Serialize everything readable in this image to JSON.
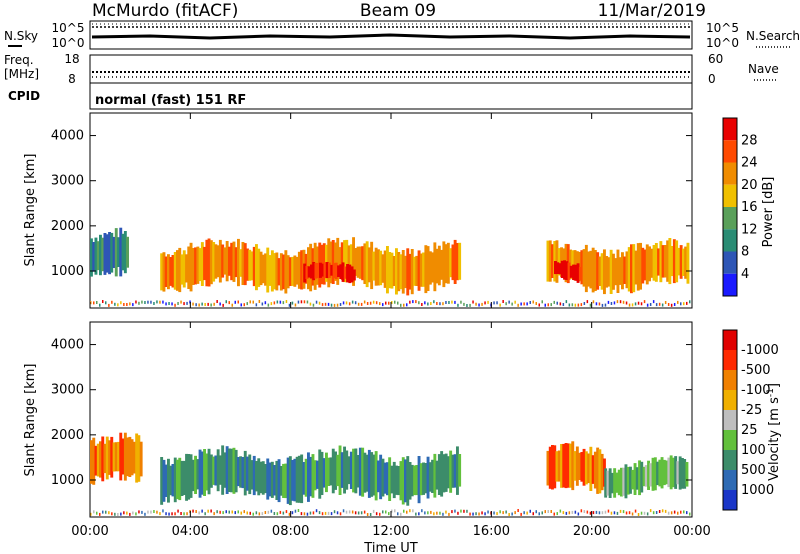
{
  "header": {
    "station": "McMurdo (fitACF)",
    "beam": "Beam 09",
    "date": "11/Mar/2019"
  },
  "noise_panel": {
    "left_label": "N.Sky",
    "right_label": "N.Search",
    "left_ticks": [
      "10^5",
      "10^0"
    ],
    "right_ticks": [
      "10^5",
      "10^0"
    ]
  },
  "freq_panel": {
    "left_label_1": "Freq.",
    "left_label_2": "[MHz]",
    "right_label": "Nave",
    "left_ticks": [
      "18",
      "8"
    ],
    "right_ticks": [
      "60",
      "0"
    ]
  },
  "cpid_panel": {
    "label": "CPID",
    "text": "normal (fast) 151 RF"
  },
  "chart_data": [
    {
      "type": "heatmap",
      "name": "power",
      "ylabel": "Slant Range [km]",
      "yticks": [
        "1000",
        "2000",
        "3000",
        "4000"
      ],
      "ylim": [
        180,
        4500
      ],
      "colorbar_label": "Power [dB]",
      "colorbar_ticks": [
        "4",
        "8",
        "12",
        "16",
        "20",
        "24",
        "28"
      ],
      "colors": [
        "#1a1aff",
        "#2e56b6",
        "#2a8c74",
        "#5aa05a",
        "#f0c000",
        "#f08c00",
        "#ff4a00",
        "#e80000"
      ],
      "regions": [
        {
          "t0": 0.0,
          "t1": 1.5,
          "r0": 800,
          "r1": 1800,
          "level": 2
        },
        {
          "t0": 2.8,
          "t1": 14.7,
          "r0": 600,
          "r1": 1600,
          "level": 5
        },
        {
          "t0": 8.5,
          "t1": 10.5,
          "r0": 700,
          "r1": 1100,
          "level": 7
        },
        {
          "t0": 18.2,
          "t1": 23.8,
          "r0": 600,
          "r1": 1600,
          "level": 5
        },
        {
          "t0": 18.5,
          "t1": 19.5,
          "r0": 850,
          "r1": 1250,
          "level": 7
        }
      ]
    },
    {
      "type": "heatmap",
      "name": "velocity",
      "ylabel": "Slant Range [km]",
      "yticks": [
        "1000",
        "2000",
        "3000",
        "4000"
      ],
      "ylim": [
        180,
        4500
      ],
      "xlabel": "Time UT",
      "xticks": [
        "00:00",
        "04:00",
        "08:00",
        "12:00",
        "16:00",
        "20:00",
        "00:00"
      ],
      "xlim": [
        0,
        24
      ],
      "colorbar_label": "Velocity [m s",
      "colorbar_sup": "-1",
      "colorbar_ticks": [
        "1000",
        "500",
        "100",
        "25",
        "-25",
        "-100",
        "-500",
        "-1000"
      ],
      "colors": [
        "#1a36c8",
        "#2e6ab4",
        "#3c8c6a",
        "#62c03c",
        "#bebebe",
        "#f0b000",
        "#f08000",
        "#ff2a00",
        "#e00000"
      ],
      "regions": [
        {
          "t0": 0.0,
          "t1": 2.0,
          "r0": 900,
          "r1": 1900,
          "level": 6
        },
        {
          "t0": 2.8,
          "t1": 14.7,
          "r0": 600,
          "r1": 1600,
          "level": 2
        },
        {
          "t0": 18.2,
          "t1": 20.5,
          "r0": 700,
          "r1": 1700,
          "level": 6
        },
        {
          "t0": 20.5,
          "t1": 23.8,
          "r0": 700,
          "r1": 1400,
          "level": 3
        }
      ]
    }
  ]
}
